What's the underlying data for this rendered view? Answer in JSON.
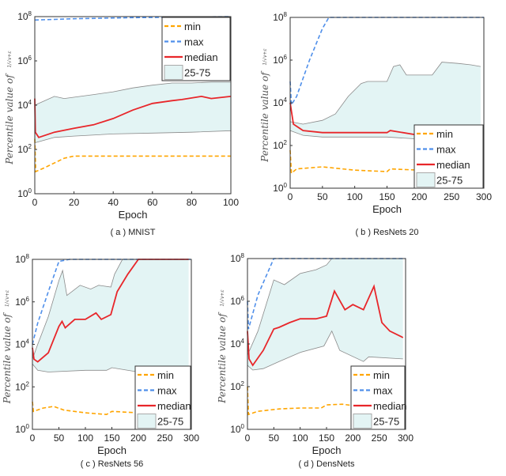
{
  "colors": {
    "min": "#ffa500",
    "max": "#4f8fea",
    "median": "#e8262a",
    "band_fill": "#e3f4f4",
    "band_edge": "#8a8a8a"
  },
  "chart_data": [
    {
      "type": "line",
      "caption": "( a ) MNIST",
      "xlabel": "Epoch",
      "ylabel": "Percentile value of",
      "ylabel_frac": "1/√v+ε",
      "yscale": "log",
      "ylim": [
        1,
        100000000
      ],
      "yticks": [
        1,
        100,
        10000,
        1000000,
        100000000
      ],
      "xlim": [
        0,
        100
      ],
      "xticks": [
        0,
        20,
        40,
        60,
        80,
        100
      ],
      "legend": "top-right",
      "grid": false,
      "legend_entries": [
        "min",
        "max",
        "median",
        "25-75"
      ],
      "series": {
        "max": [
          [
            0,
            70000000
          ],
          [
            20,
            80000000
          ],
          [
            50,
            90000000
          ],
          [
            80,
            95000000
          ],
          [
            100,
            100000000
          ]
        ],
        "min": [
          [
            0,
            300
          ],
          [
            0.5,
            10
          ],
          [
            5,
            15
          ],
          [
            15,
            40
          ],
          [
            20,
            50
          ],
          [
            100,
            50
          ]
        ],
        "median": [
          [
            0,
            20000
          ],
          [
            0.3,
            600
          ],
          [
            2,
            350
          ],
          [
            10,
            600
          ],
          [
            20,
            900
          ],
          [
            30,
            1300
          ],
          [
            40,
            2500
          ],
          [
            50,
            6000
          ],
          [
            60,
            12000
          ],
          [
            70,
            16000
          ],
          [
            75,
            18000
          ],
          [
            85,
            25000
          ],
          [
            90,
            20000
          ],
          [
            100,
            25000
          ]
        ],
        "q75": [
          [
            0,
            10000
          ],
          [
            10,
            25000
          ],
          [
            15,
            20000
          ],
          [
            30,
            30000
          ],
          [
            40,
            40000
          ],
          [
            50,
            60000
          ],
          [
            60,
            80000
          ],
          [
            70,
            100000
          ],
          [
            80,
            100000
          ],
          [
            90,
            110000
          ],
          [
            100,
            110000
          ]
        ],
        "q25": [
          [
            0,
            200
          ],
          [
            10,
            350
          ],
          [
            20,
            400
          ],
          [
            40,
            500
          ],
          [
            60,
            550
          ],
          [
            80,
            600
          ],
          [
            100,
            700
          ]
        ]
      }
    },
    {
      "type": "line",
      "caption": "( b ) ResNets 20",
      "xlabel": "Epoch",
      "ylabel": "Percentile value of",
      "ylabel_frac": "1/√v+ε",
      "yscale": "log",
      "ylim": [
        1,
        100000000
      ],
      "yticks": [
        1,
        100,
        10000,
        1000000,
        100000000
      ],
      "xlim": [
        0,
        300
      ],
      "xticks": [
        0,
        50,
        100,
        150,
        200,
        250,
        300
      ],
      "legend": "bottom-right",
      "grid": false,
      "legend_entries": [
        "min",
        "max",
        "median",
        "25-75"
      ],
      "series": {
        "max": [
          [
            0,
            100000
          ],
          [
            2,
            8000
          ],
          [
            10,
            20000
          ],
          [
            30,
            1000000
          ],
          [
            50,
            30000000
          ],
          [
            60,
            100000000
          ],
          [
            300,
            100000000
          ]
        ],
        "min": [
          [
            0,
            60
          ],
          [
            2,
            5
          ],
          [
            10,
            8
          ],
          [
            50,
            10
          ],
          [
            100,
            7
          ],
          [
            150,
            6
          ],
          [
            155,
            8
          ],
          [
            200,
            7
          ],
          [
            295,
            6
          ]
        ],
        "median": [
          [
            0,
            10000
          ],
          [
            5,
            1000
          ],
          [
            20,
            500
          ],
          [
            50,
            400
          ],
          [
            150,
            400
          ],
          [
            155,
            500
          ],
          [
            200,
            300
          ],
          [
            295,
            250
          ]
        ],
        "q75": [
          [
            0,
            1300
          ],
          [
            20,
            1000
          ],
          [
            50,
            1500
          ],
          [
            70,
            3000
          ],
          [
            90,
            20000
          ],
          [
            110,
            80000
          ],
          [
            120,
            100000
          ],
          [
            150,
            100000
          ],
          [
            160,
            500000
          ],
          [
            170,
            600000
          ],
          [
            180,
            200000
          ],
          [
            220,
            200000
          ],
          [
            235,
            800000
          ],
          [
            260,
            700000
          ],
          [
            280,
            600000
          ],
          [
            295,
            500000
          ]
        ],
        "q25": [
          [
            0,
            500
          ],
          [
            20,
            300
          ],
          [
            50,
            250
          ],
          [
            150,
            250
          ],
          [
            200,
            200
          ],
          [
            295,
            200
          ]
        ]
      }
    },
    {
      "type": "line",
      "caption": "( c ) ResNets 56",
      "xlabel": "Epoch",
      "ylabel": "Percentile value of",
      "ylabel_frac": "1/√v+ε",
      "yscale": "log",
      "ylim": [
        1,
        100000000
      ],
      "yticks": [
        1,
        100,
        10000,
        1000000,
        100000000
      ],
      "xlim": [
        0,
        300
      ],
      "xticks": [
        0,
        50,
        100,
        150,
        200,
        250,
        300
      ],
      "legend": "bottom-right",
      "grid": false,
      "legend_entries": [
        "min",
        "max",
        "median",
        "25-75"
      ],
      "series": {
        "max": [
          [
            0,
            10000
          ],
          [
            10,
            100000
          ],
          [
            30,
            3000000
          ],
          [
            50,
            80000000
          ],
          [
            70,
            100000000
          ],
          [
            300,
            100000000
          ]
        ],
        "min": [
          [
            0,
            20
          ],
          [
            2,
            7
          ],
          [
            20,
            10
          ],
          [
            40,
            12
          ],
          [
            60,
            8
          ],
          [
            100,
            6
          ],
          [
            140,
            5
          ],
          [
            150,
            7
          ],
          [
            200,
            6
          ],
          [
            295,
            6
          ]
        ],
        "median": [
          [
            0,
            7000
          ],
          [
            3,
            2000
          ],
          [
            10,
            1500
          ],
          [
            30,
            4000
          ],
          [
            50,
            70000
          ],
          [
            56,
            120000
          ],
          [
            62,
            60000
          ],
          [
            80,
            150000
          ],
          [
            100,
            150000
          ],
          [
            120,
            300000
          ],
          [
            130,
            150000
          ],
          [
            148,
            250000
          ],
          [
            160,
            3000000
          ],
          [
            180,
            20000000
          ],
          [
            200,
            100000000
          ],
          [
            295,
            100000000
          ]
        ],
        "q75": [
          [
            0,
            2000
          ],
          [
            10,
            10000
          ],
          [
            30,
            200000
          ],
          [
            50,
            10000000
          ],
          [
            57,
            30000000
          ],
          [
            65,
            2000000
          ],
          [
            90,
            6000000
          ],
          [
            110,
            4000000
          ],
          [
            125,
            6000000
          ],
          [
            148,
            5000000
          ],
          [
            155,
            20000000
          ],
          [
            170,
            100000000
          ],
          [
            295,
            100000000
          ]
        ],
        "q25": [
          [
            0,
            1200
          ],
          [
            10,
            600
          ],
          [
            30,
            500
          ],
          [
            100,
            600
          ],
          [
            140,
            600
          ],
          [
            150,
            800
          ],
          [
            200,
            500
          ],
          [
            250,
            700
          ],
          [
            295,
            700
          ]
        ]
      }
    },
    {
      "type": "line",
      "caption": "( d ) DensNets",
      "xlabel": "Epoch",
      "ylabel": "Percentile value of",
      "ylabel_frac": "1/√v+ε",
      "yscale": "log",
      "ylim": [
        1,
        100000000
      ],
      "yticks": [
        1,
        100,
        10000,
        1000000,
        100000000
      ],
      "xlim": [
        0,
        300
      ],
      "xticks": [
        0,
        50,
        100,
        150,
        200,
        250,
        300
      ],
      "legend": "bottom-right",
      "grid": false,
      "legend_entries": [
        "min",
        "max",
        "median",
        "25-75"
      ],
      "series": {
        "max": [
          [
            0,
            1000000
          ],
          [
            2,
            50000
          ],
          [
            20,
            2000000
          ],
          [
            50,
            100000000
          ],
          [
            300,
            100000000
          ]
        ],
        "min": [
          [
            0,
            100
          ],
          [
            2,
            5
          ],
          [
            20,
            7
          ],
          [
            60,
            9
          ],
          [
            100,
            10
          ],
          [
            140,
            10
          ],
          [
            150,
            14
          ],
          [
            180,
            15
          ],
          [
            200,
            13
          ],
          [
            295,
            14
          ]
        ],
        "median": [
          [
            0,
            40000
          ],
          [
            3,
            2000
          ],
          [
            10,
            1000
          ],
          [
            30,
            5000
          ],
          [
            50,
            50000
          ],
          [
            60,
            60000
          ],
          [
            80,
            100000
          ],
          [
            100,
            150000
          ],
          [
            130,
            150000
          ],
          [
            150,
            200000
          ],
          [
            165,
            3000000
          ],
          [
            185,
            400000
          ],
          [
            200,
            700000
          ],
          [
            220,
            400000
          ],
          [
            240,
            5000000
          ],
          [
            255,
            100000
          ],
          [
            270,
            40000
          ],
          [
            295,
            20000
          ]
        ],
        "q75": [
          [
            0,
            3000
          ],
          [
            20,
            40000
          ],
          [
            50,
            10000000
          ],
          [
            70,
            6000000
          ],
          [
            100,
            20000000
          ],
          [
            130,
            30000000
          ],
          [
            150,
            50000000
          ],
          [
            160,
            100000000
          ],
          [
            295,
            100000000
          ]
        ],
        "q25": [
          [
            0,
            1000
          ],
          [
            10,
            600
          ],
          [
            30,
            700
          ],
          [
            60,
            1500
          ],
          [
            100,
            4000
          ],
          [
            145,
            8000
          ],
          [
            160,
            40000
          ],
          [
            175,
            5000
          ],
          [
            220,
            1500
          ],
          [
            230,
            2500
          ],
          [
            295,
            2000
          ]
        ]
      }
    }
  ]
}
